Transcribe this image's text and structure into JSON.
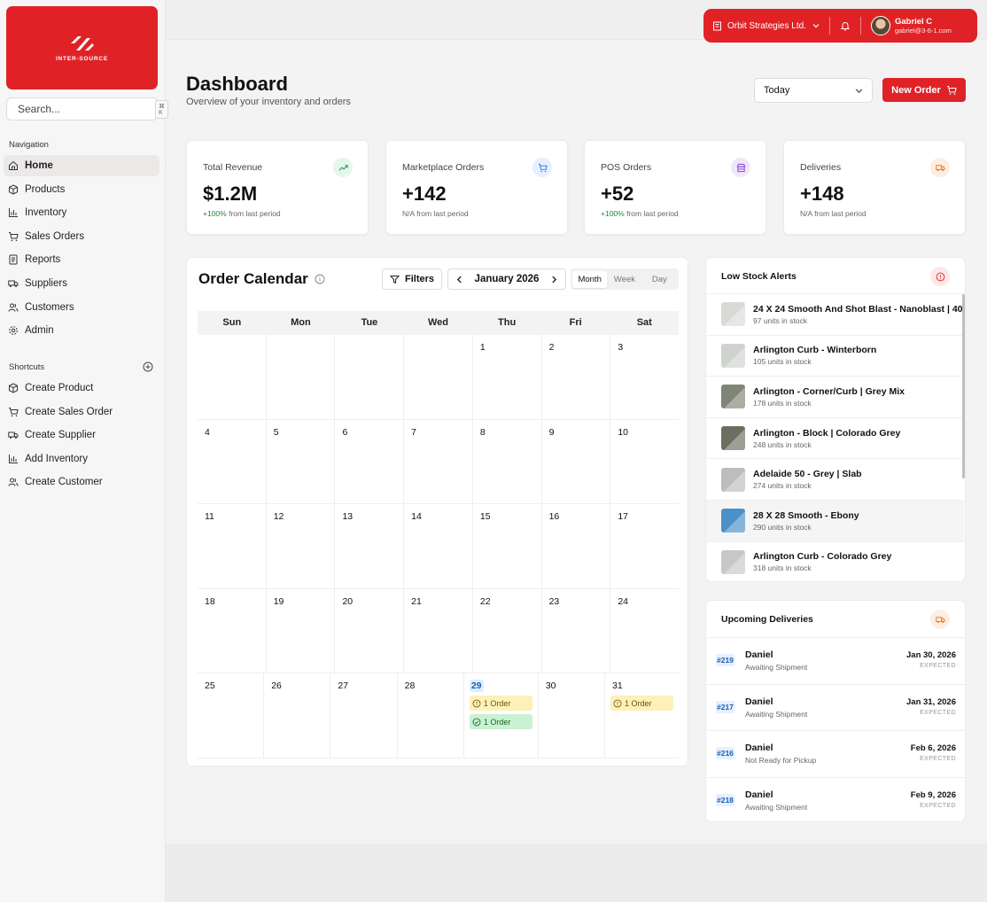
{
  "brand": {
    "logo_text": "INTER-SOURCE",
    "accent": "#e02227"
  },
  "search": {
    "placeholder": "Search...",
    "shortcut": "⌘ K"
  },
  "navigation": {
    "heading": "Navigation",
    "items": [
      {
        "label": "Home",
        "icon": "home-icon",
        "active": true
      },
      {
        "label": "Products",
        "icon": "box-icon"
      },
      {
        "label": "Inventory",
        "icon": "bar-chart-icon"
      },
      {
        "label": "Sales Orders",
        "icon": "cart-icon"
      },
      {
        "label": "Reports",
        "icon": "document-icon"
      },
      {
        "label": "Suppliers",
        "icon": "truck-icon"
      },
      {
        "label": "Customers",
        "icon": "users-icon"
      },
      {
        "label": "Admin",
        "icon": "gear-icon"
      }
    ]
  },
  "shortcuts": {
    "heading": "Shortcuts",
    "items": [
      {
        "label": "Create Product",
        "icon": "box-icon"
      },
      {
        "label": "Create Sales Order",
        "icon": "cart-icon"
      },
      {
        "label": "Create Supplier",
        "icon": "truck-icon"
      },
      {
        "label": "Add Inventory",
        "icon": "bar-chart-icon"
      },
      {
        "label": "Create Customer",
        "icon": "users-icon"
      }
    ]
  },
  "account": {
    "organization": "Orbit Strategies Ltd.",
    "user_name": "Gabriel C",
    "user_email": "gabriel@3-6-1.com"
  },
  "header": {
    "title": "Dashboard",
    "subtitle": "Overview of your inventory and orders",
    "period": "Today",
    "new_order_label": "New Order"
  },
  "stats": [
    {
      "label": "Total Revenue",
      "value": "$1.2M",
      "change": "+100%",
      "change_suffix": " from last period",
      "icon": "trend-up-icon",
      "color": "#1f9d4c",
      "bg": "#e5f6ea"
    },
    {
      "label": "Marketplace Orders",
      "value": "+142",
      "change": "N/A",
      "change_suffix": " from last period",
      "icon": "cart-icon",
      "color": "#2d6fd6",
      "bg": "#e6efff"
    },
    {
      "label": "POS Orders",
      "value": "+52",
      "change": "+100%",
      "change_suffix": " from last period",
      "icon": "store-icon",
      "color": "#8b3fd1",
      "bg": "#f1e7fb"
    },
    {
      "label": "Deliveries",
      "value": "+148",
      "change": "N/A",
      "change_suffix": " from last period",
      "icon": "truck-icon",
      "color": "#e8741c",
      "bg": "#fdeee1"
    }
  ],
  "calendar": {
    "title": "Order Calendar",
    "filters_label": "Filters",
    "month_label": "January 2026",
    "views": [
      "Month",
      "Week",
      "Day"
    ],
    "active_view": "Month",
    "weekdays": [
      "Sun",
      "Mon",
      "Tue",
      "Wed",
      "Thu",
      "Fri",
      "Sat"
    ],
    "weeks": [
      [
        "",
        "",
        "",
        "",
        "1",
        "2",
        "3"
      ],
      [
        "4",
        "5",
        "6",
        "7",
        "8",
        "9",
        "10"
      ],
      [
        "11",
        "12",
        "13",
        "14",
        "15",
        "16",
        "17"
      ],
      [
        "18",
        "19",
        "20",
        "21",
        "22",
        "23",
        "24"
      ],
      [
        "25",
        "26",
        "27",
        "28",
        "29",
        "30",
        "31"
      ]
    ],
    "today": "29",
    "events": [
      {
        "day": "29",
        "label": "1 Order",
        "status": "pending"
      },
      {
        "day": "29",
        "label": "1 Order",
        "status": "done"
      },
      {
        "day": "31",
        "label": "1 Order",
        "status": "pending"
      }
    ]
  },
  "low_stock": {
    "title": "Low Stock Alerts",
    "items": [
      {
        "name": "24 X 24 Smooth And Shot Blast - Nanoblast | 40",
        "qty": "97 units in stock",
        "thumb": "#d9d9d6"
      },
      {
        "name": "Arlington Curb - Winterborn",
        "qty": "105 units in stock",
        "thumb": "#cfd2cf"
      },
      {
        "name": "Arlington - Corner/Curb | Grey Mix",
        "qty": "178 units in stock",
        "thumb": "#7f8577"
      },
      {
        "name": "Arlington - Block | Colorado Grey",
        "qty": "248 units in stock",
        "thumb": "#6b6f60"
      },
      {
        "name": "Adelaide 50 - Grey | Slab",
        "qty": "274 units in stock",
        "thumb": "#bdbdbd"
      },
      {
        "name": "28 X 28 Smooth - Ebony",
        "qty": "290 units in stock",
        "thumb": "#4a90c9"
      },
      {
        "name": "Arlington Curb - Colorado Grey",
        "qty": "318 units in stock",
        "thumb": "#c8c8c6"
      }
    ],
    "highlighted_index": 5
  },
  "deliveries": {
    "title": "Upcoming Deliveries",
    "items": [
      {
        "id": "#219",
        "name": "Daniel",
        "status": "Awaiting Shipment",
        "date": "Jan 30, 2026",
        "tag": "EXPECTED"
      },
      {
        "id": "#217",
        "name": "Daniel",
        "status": "Awaiting Shipment",
        "date": "Jan 31, 2026",
        "tag": "EXPECTED"
      },
      {
        "id": "#216",
        "name": "Daniel",
        "status": "Not Ready for Pickup",
        "date": "Feb 6, 2026",
        "tag": "EXPECTED"
      },
      {
        "id": "#218",
        "name": "Daniel",
        "status": "Awaiting Shipment",
        "date": "Feb 9, 2026",
        "tag": "EXPECTED"
      }
    ]
  }
}
